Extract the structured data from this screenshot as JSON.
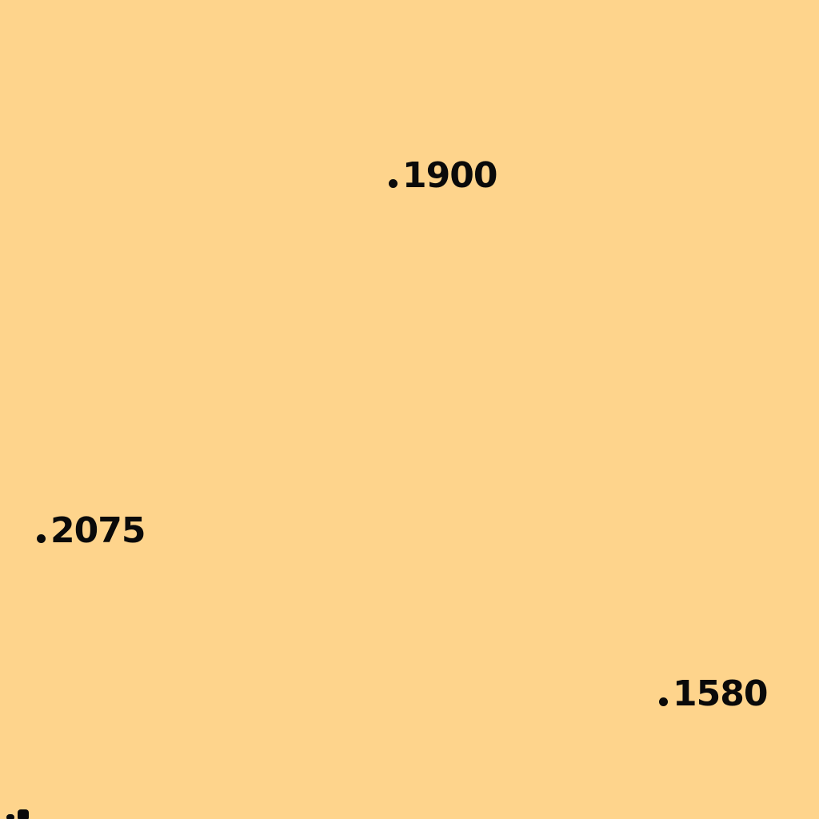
{
  "map": {
    "background_color": "#FED48C",
    "label_color": "#0a0a0a",
    "spot_heights": [
      {
        "label": "1900"
      },
      {
        "label": "2075"
      },
      {
        "label": "1580"
      }
    ]
  }
}
